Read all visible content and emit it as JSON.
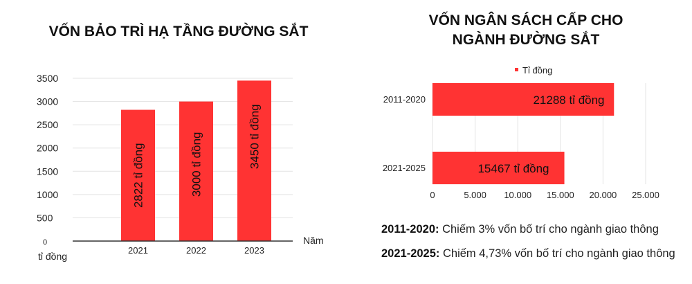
{
  "chart_data": [
    {
      "type": "bar",
      "title": "VỐN BẢO TRÌ HẠ TẦNG ĐƯỜNG SẮT",
      "categories": [
        "2021",
        "2022",
        "2023"
      ],
      "values": [
        2822,
        3000,
        3450
      ],
      "data_labels": [
        "2822  tỉ đồng",
        "3000  tỉ đồng",
        "3450  tỉ đồng"
      ],
      "xlabel": "Năm",
      "ylabel": "tỉ đồng",
      "ylim": [
        0,
        3500
      ],
      "yticks": [
        "0",
        "500",
        "1000",
        "1500",
        "2000",
        "2500",
        "3000",
        "3500"
      ],
      "grid": true,
      "color": "#ff3333"
    },
    {
      "type": "bar",
      "orientation": "horizontal",
      "title": "VỐN NGÂN SÁCH CẤP CHO NGÀNH ĐƯỜNG SẮT",
      "title_lines": [
        "VỐN NGÂN SÁCH CẤP CHO",
        "NGÀNH ĐƯỜNG SẮT"
      ],
      "categories": [
        "2011-2020",
        "2021-2025"
      ],
      "series": [
        {
          "name": "Tỉ đồng",
          "values": [
            21288,
            15467
          ]
        }
      ],
      "data_labels": [
        "21288 tỉ đồng",
        "15467 tỉ đồng"
      ],
      "xlim": [
        0,
        25000
      ],
      "xticks": [
        "0",
        "5.000",
        "10.000",
        "15.000",
        "20.000",
        "25.000"
      ],
      "legend": "top",
      "grid": true,
      "color": "#ff3333"
    }
  ],
  "notes": [
    {
      "label": "2011-2020:",
      "text": " Chiếm 3% vốn bố trí cho ngành giao thông"
    },
    {
      "label": "2021-2025:",
      "text": " Chiếm 4,73% vốn bố trí cho ngành giao thông"
    }
  ]
}
